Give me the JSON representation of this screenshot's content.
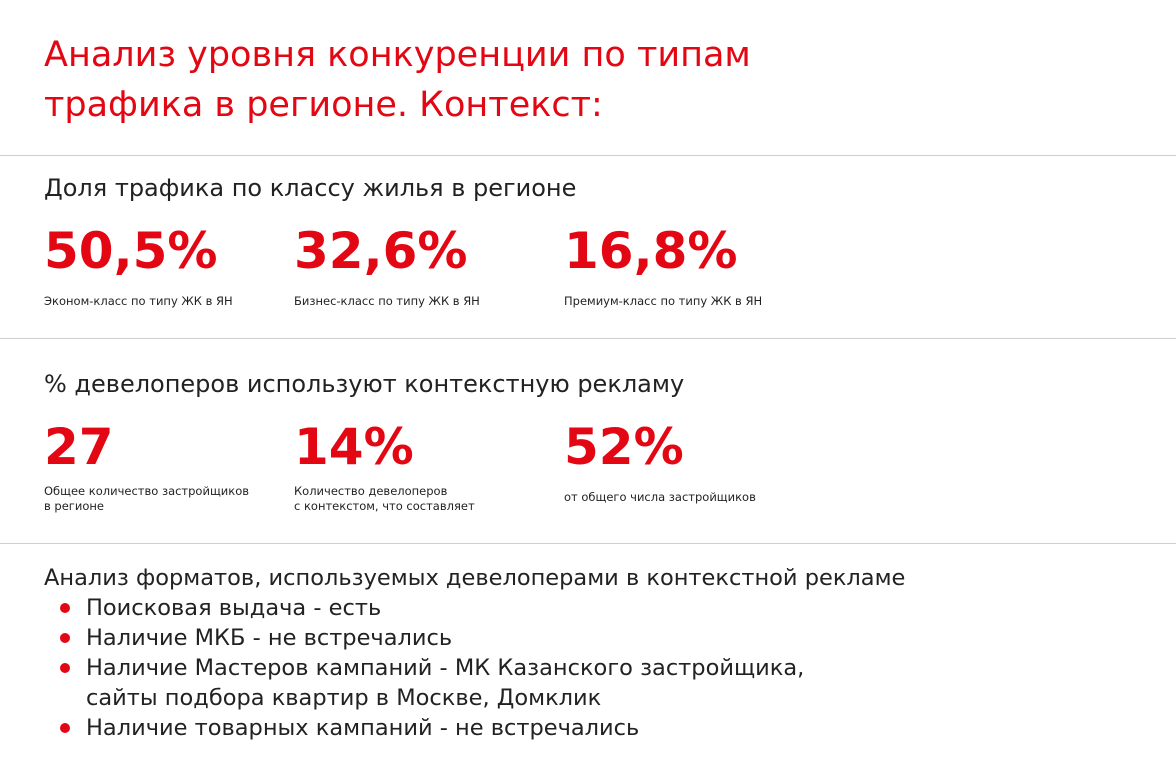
{
  "title": [
    "Анализ уровня конкуренции по типам",
    "трафика в регионе. Контекст:"
  ],
  "sections": [
    {
      "heading": "Доля трафика по классу жилья в регионе",
      "stats": [
        {
          "value": "50,5%",
          "caption": [
            "Эконом-класс по типу ЖК в ЯН"
          ]
        },
        {
          "value": "32,6%",
          "caption": [
            "Бизнес-класс по типу ЖК в ЯН"
          ]
        },
        {
          "value": "16,8%",
          "caption": [
            "Премиум-класс по типу ЖК в ЯН"
          ]
        }
      ]
    },
    {
      "heading": "% девелоперов используют контекстную рекламу",
      "stats": [
        {
          "value": "27",
          "caption": [
            "Общее количество застройщиков",
            "в регионе"
          ]
        },
        {
          "value": "14%",
          "caption": [
            "Количество девелоперов",
            "с контекстом, что составляет"
          ]
        },
        {
          "value": "52%",
          "caption": [
            "от общего числа застройщиков"
          ]
        }
      ]
    }
  ],
  "formats": {
    "heading": "Анализ форматов, используемых девелоперами в контекстной рекламе",
    "items": [
      [
        "Поисковая выдача - есть"
      ],
      [
        "Наличие МКБ - не встречались"
      ],
      [
        "Наличие Мастеров кампаний - МК Казанского застройщика,",
        "сайты подбора квартир в Москве, Домклик"
      ],
      [
        "Наличие товарных кампаний - не встречались"
      ]
    ]
  }
}
